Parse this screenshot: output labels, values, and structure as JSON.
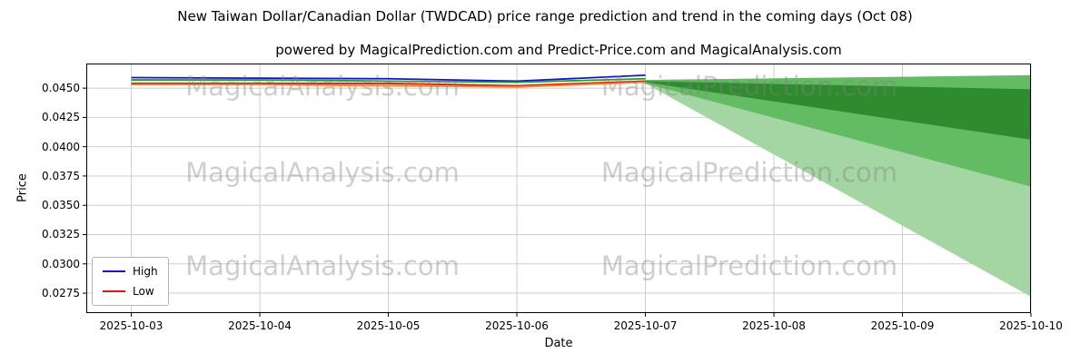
{
  "chart_data": {
    "type": "line",
    "title": "New Taiwan Dollar/Canadian Dollar (TWDCAD) price range prediction and trend in the coming days (Oct 08)",
    "subtitle": "powered by MagicalPrediction.com and Predict-Price.com and MagicalAnalysis.com",
    "xlabel": "Date",
    "ylabel": "Price",
    "x_tick_labels": [
      "2025-10-03",
      "2025-10-04",
      "2025-10-05",
      "2025-10-06",
      "2025-10-07",
      "2025-10-08",
      "2025-10-09",
      "2025-10-10"
    ],
    "xlim_days": [
      -0.35,
      7
    ],
    "ylim": [
      0.0258,
      0.0471
    ],
    "yticks": [
      {
        "value": 0.0275,
        "label": "0.0275"
      },
      {
        "value": 0.03,
        "label": "0.0300"
      },
      {
        "value": 0.0325,
        "label": "0.0325"
      },
      {
        "value": 0.035,
        "label": "0.0350"
      },
      {
        "value": 0.0375,
        "label": "0.0375"
      },
      {
        "value": 0.04,
        "label": "0.0400"
      },
      {
        "value": 0.0425,
        "label": "0.0425"
      },
      {
        "value": 0.045,
        "label": "0.0450"
      }
    ],
    "grid": true,
    "series": [
      {
        "name": "High",
        "color": "#1414cc",
        "in_legend": true,
        "x": [
          0,
          1,
          2,
          3,
          4
        ],
        "values": [
          0.0459,
          0.04585,
          0.0458,
          0.0456,
          0.0461
        ]
      },
      {
        "name": "green-line",
        "color": "#22a022",
        "in_legend": false,
        "x": [
          0,
          1,
          2,
          3,
          4
        ],
        "values": [
          0.0457,
          0.0457,
          0.0456,
          0.0455,
          0.0458
        ]
      },
      {
        "name": "Low",
        "color": "#e01414",
        "in_legend": true,
        "x": [
          0,
          1,
          2,
          3,
          4
        ],
        "values": [
          0.0454,
          0.0454,
          0.0454,
          0.0452,
          0.0456
        ]
      },
      {
        "name": "orange-line",
        "color": "#ff8c1a",
        "in_legend": false,
        "x": [
          0,
          1,
          2,
          3,
          4
        ],
        "values": [
          0.0453,
          0.0453,
          0.0452,
          0.0451,
          0.0455
        ]
      }
    ],
    "prediction_bands": [
      {
        "name": "outer",
        "color": "#a3d6a3",
        "x": [
          4,
          7
        ],
        "top": [
          0.0457,
          0.0461
        ],
        "bottom": [
          0.0454,
          0.0272
        ]
      },
      {
        "name": "middle",
        "color": "#63bb63",
        "x": [
          4,
          7
        ],
        "top": [
          0.0457,
          0.0461
        ],
        "bottom": [
          0.0454,
          0.0366
        ]
      },
      {
        "name": "inner",
        "color": "#2e8b2e",
        "x": [
          4,
          7
        ],
        "top": [
          0.0456,
          0.0449
        ],
        "bottom": [
          0.0455,
          0.0406
        ]
      }
    ],
    "legend": [
      {
        "label": "High",
        "color": "#1414cc"
      },
      {
        "label": "Low",
        "color": "#e01414"
      }
    ],
    "legend_position": "lower left",
    "watermarks": {
      "left": "MagicalAnalysis.com",
      "right": "MagicalPrediction.com"
    }
  }
}
